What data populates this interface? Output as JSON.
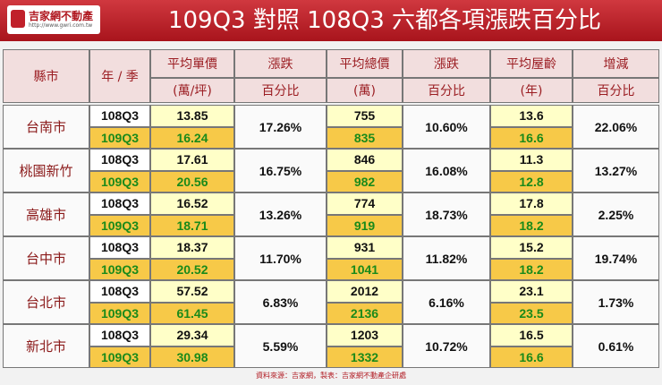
{
  "header": {
    "logo": "吉家網不動產",
    "url": "http://www.gwri.com.tw",
    "title": "109Q3 對照 108Q3 六都各項漲跌百分比"
  },
  "table": {
    "columns": [
      [
        "縣市"
      ],
      [
        "年 / 季"
      ],
      [
        "平均單價",
        "(萬/坪)"
      ],
      [
        "漲跌",
        "百分比"
      ],
      [
        "平均總價",
        "(萬)"
      ],
      [
        "漲跌",
        "百分比"
      ],
      [
        "平均屋齡",
        "(年)"
      ],
      [
        "增減",
        "百分比"
      ]
    ],
    "rows": [
      {
        "city": "台南市",
        "periods": [
          "108Q3",
          "109Q3"
        ],
        "unit_price": [
          "13.85",
          "16.24"
        ],
        "unit_change": "17.26%",
        "total_price": [
          "755",
          "835"
        ],
        "total_change": "10.60%",
        "age": [
          "13.6",
          "16.6"
        ],
        "age_change": "22.06%"
      },
      {
        "city": "桃園新竹",
        "periods": [
          "108Q3",
          "109Q3"
        ],
        "unit_price": [
          "17.61",
          "20.56"
        ],
        "unit_change": "16.75%",
        "total_price": [
          "846",
          "982"
        ],
        "total_change": "16.08%",
        "age": [
          "11.3",
          "12.8"
        ],
        "age_change": "13.27%"
      },
      {
        "city": "高雄市",
        "periods": [
          "108Q3",
          "109Q3"
        ],
        "unit_price": [
          "16.52",
          "18.71"
        ],
        "unit_change": "13.26%",
        "total_price": [
          "774",
          "919"
        ],
        "total_change": "18.73%",
        "age": [
          "17.8",
          "18.2"
        ],
        "age_change": "2.25%"
      },
      {
        "city": "台中市",
        "periods": [
          "108Q3",
          "109Q3"
        ],
        "unit_price": [
          "18.37",
          "20.52"
        ],
        "unit_change": "11.70%",
        "total_price": [
          "931",
          "1041"
        ],
        "total_change": "11.82%",
        "age": [
          "15.2",
          "18.2"
        ],
        "age_change": "19.74%"
      },
      {
        "city": "台北市",
        "periods": [
          "108Q3",
          "109Q3"
        ],
        "unit_price": [
          "57.52",
          "61.45"
        ],
        "unit_change": "6.83%",
        "total_price": [
          "2012",
          "2136"
        ],
        "total_change": "6.16%",
        "age": [
          "23.1",
          "23.5"
        ],
        "age_change": "1.73%"
      },
      {
        "city": "新北市",
        "periods": [
          "108Q3",
          "109Q3"
        ],
        "unit_price": [
          "29.34",
          "30.98"
        ],
        "unit_change": "5.59%",
        "total_price": [
          "1203",
          "1332"
        ],
        "total_change": "10.72%",
        "age": [
          "16.5",
          "16.6"
        ],
        "age_change": "0.61%"
      }
    ]
  },
  "footer": "資料來源：吉家網，製表：吉家網不動產企研處"
}
